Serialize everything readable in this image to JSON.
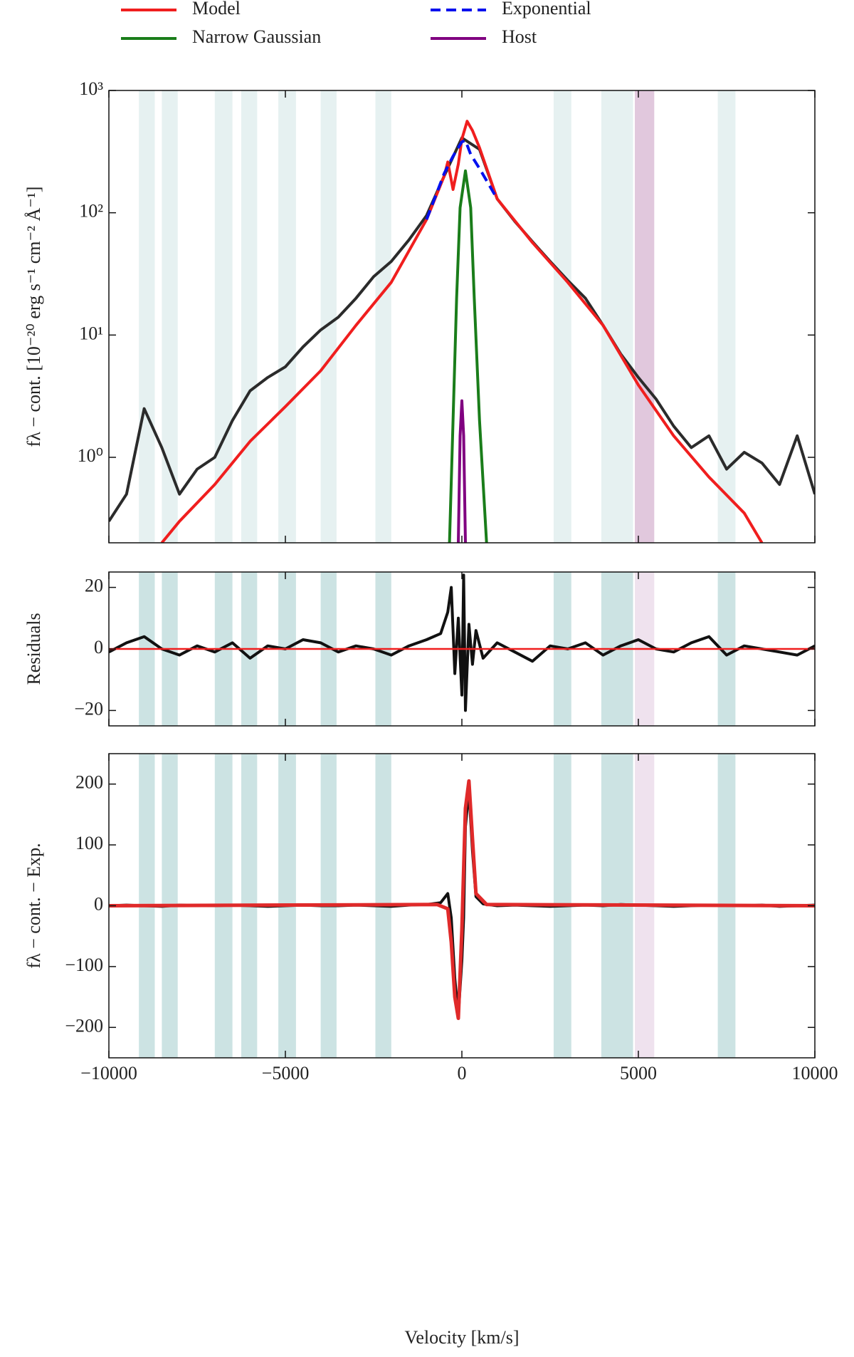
{
  "chart_data": [
    {
      "type": "line",
      "log_y": true,
      "ylabel": "fλ − cont. [10⁻²⁰ erg s⁻¹ cm⁻² Å⁻¹]",
      "ylim": [
        0.2,
        1000
      ],
      "yticks": [
        {
          "value": 1,
          "label": "10⁰"
        },
        {
          "value": 10,
          "label": "10¹"
        },
        {
          "value": 100,
          "label": "10²"
        },
        {
          "value": 1000,
          "label": "10³"
        }
      ],
      "region_color": "#8fc1c1",
      "host_color": "#a8609f",
      "masked_regions": [
        [
          -9150,
          -8700
        ],
        [
          -8500,
          -8050
        ],
        [
          -7000,
          -6500
        ],
        [
          -6250,
          -5800
        ],
        [
          -5200,
          -4700
        ],
        [
          -4000,
          -3550
        ],
        [
          -2450,
          -2000
        ],
        [
          2600,
          3100
        ],
        [
          3950,
          4850
        ],
        [
          7250,
          7750
        ]
      ],
      "host_region": [
        4900,
        5450
      ],
      "observed": {
        "color": "#2b2b2b",
        "x": [
          -10000,
          -9500,
          -9000,
          -8500,
          -8000,
          -7500,
          -7000,
          -6500,
          -6000,
          -5500,
          -5000,
          -4500,
          -4000,
          -3500,
          -3000,
          -2500,
          -2000,
          -1500,
          -1000,
          -500,
          0,
          500,
          1000,
          1500,
          2000,
          2500,
          3000,
          3500,
          4000,
          4500,
          5000,
          5500,
          6000,
          6500,
          7000,
          7500,
          8000,
          8500,
          9000,
          9500,
          10000
        ],
        "values": [
          0.3,
          0.5,
          2.5,
          1.2,
          0.5,
          0.8,
          1.0,
          2.0,
          3.5,
          4.5,
          5.5,
          8,
          11,
          14,
          20,
          30,
          40,
          60,
          95,
          200,
          410,
          330,
          130,
          85,
          58,
          40,
          28,
          20,
          12,
          7,
          4.5,
          3,
          1.8,
          1.2,
          1.5,
          0.8,
          1.1,
          0.9,
          0.6,
          1.5,
          0.5
        ]
      },
      "series": [
        {
          "name": "Model",
          "color": "#f01e1e",
          "x": [
            -8500,
            -8000,
            -7000,
            -6000,
            -5000,
            -4000,
            -3000,
            -2000,
            -1000,
            -500,
            -400,
            -250,
            -100,
            0,
            150,
            300,
            500,
            1000,
            2000,
            3000,
            4000,
            5000,
            6000,
            7000,
            8000,
            8500
          ],
          "values": [
            0.2,
            0.3,
            0.6,
            1.35,
            2.6,
            5.1,
            12,
            27,
            88,
            200,
            260,
            155,
            250,
            400,
            560,
            470,
            340,
            130,
            57,
            27,
            12,
            3.9,
            1.5,
            0.69,
            0.35,
            0.2
          ]
        },
        {
          "name": "Narrow Gaussian",
          "color": "#1a7d1a",
          "x": [
            -350,
            -250,
            -150,
            -50,
            100,
            250,
            350,
            500,
            700
          ],
          "values": [
            0.2,
            2,
            20,
            110,
            220,
            110,
            20,
            2,
            0.2
          ]
        },
        {
          "name": "Exponential",
          "color": "#0010ee",
          "dash": true,
          "x": [
            -1000,
            -500,
            -250,
            0,
            100,
            250,
            500,
            1000
          ],
          "values": [
            88,
            210,
            290,
            380,
            390,
            300,
            230,
            130
          ]
        },
        {
          "name": "Host",
          "color": "#800080",
          "x": [
            -100,
            -50,
            0,
            50,
            100
          ],
          "values": [
            0.2,
            1.5,
            2.9,
            1.5,
            0.2
          ]
        }
      ]
    },
    {
      "type": "line",
      "ylabel": "Residuals",
      "ylim": [
        -25,
        25
      ],
      "yticks": [
        {
          "value": -20,
          "label": "−20"
        },
        0,
        20
      ],
      "observed": {
        "color": "#111111",
        "x": [
          -10000,
          -9500,
          -9000,
          -8500,
          -8000,
          -7500,
          -7000,
          -6500,
          -6000,
          -5500,
          -5000,
          -4500,
          -4000,
          -3500,
          -3000,
          -2500,
          -2000,
          -1500,
          -1000,
          -600,
          -400,
          -300,
          -200,
          -100,
          0,
          50,
          100,
          200,
          300,
          400,
          600,
          1000,
          1500,
          2000,
          2500,
          3000,
          3500,
          4000,
          4500,
          5000,
          5500,
          6000,
          6500,
          7000,
          7500,
          8000,
          8500,
          9000,
          9500,
          10000
        ],
        "values": [
          -1,
          2,
          4,
          0,
          -2,
          1,
          -1,
          2,
          -3,
          1,
          0,
          3,
          2,
          -1,
          1,
          0,
          -2,
          1,
          3,
          5,
          12,
          20,
          -8,
          10,
          -15,
          24,
          -20,
          8,
          -5,
          6,
          -3,
          2,
          -1,
          -4,
          1,
          0,
          2,
          -2,
          1,
          3,
          0,
          -1,
          2,
          4,
          -2,
          1,
          0,
          -1,
          -2,
          1
        ]
      },
      "fit": {
        "color": "#f01e1e",
        "x": [
          -10000,
          10000
        ],
        "values": [
          0,
          0
        ]
      }
    },
    {
      "type": "line",
      "ylabel": "fλ − cont. − Exp.",
      "ylim": [
        -250,
        250
      ],
      "yticks": [
        {
          "value": -200,
          "label": "−200"
        },
        {
          "value": -100,
          "label": "−100"
        },
        0,
        100,
        200
      ],
      "xlabel": "Velocity [km/s]",
      "xlim": [
        -10000,
        10000
      ],
      "xticks": [
        {
          "value": -10000,
          "label": "−10000"
        },
        {
          "value": -5000,
          "label": "−5000"
        },
        0,
        5000,
        10000
      ],
      "observed": {
        "color": "#111111",
        "x": [
          -10000,
          -9500,
          -9000,
          -8500,
          -8000,
          -7500,
          -7000,
          -6500,
          -6000,
          -5500,
          -5000,
          -4500,
          -4000,
          -3500,
          -3000,
          -2500,
          -2000,
          -1500,
          -1000,
          -600,
          -400,
          -300,
          -200,
          -100,
          0,
          50,
          100,
          200,
          300,
          400,
          600,
          1000,
          1500,
          2000,
          2500,
          3000,
          3500,
          4000,
          4500,
          5000,
          5500,
          6000,
          6500,
          7000,
          7500,
          8000,
          8500,
          9000,
          9500,
          10000
        ],
        "values": [
          0,
          1,
          0,
          -1,
          1,
          0,
          0,
          1,
          0,
          -1,
          0,
          1,
          0,
          0,
          1,
          0,
          -1,
          1,
          2,
          5,
          20,
          -20,
          -120,
          -180,
          -90,
          -20,
          130,
          190,
          90,
          15,
          3,
          0,
          1,
          0,
          -1,
          0,
          1,
          0,
          2,
          1,
          0,
          -1,
          0,
          1,
          0,
          0,
          1,
          -1,
          0,
          1
        ]
      },
      "fit": {
        "color": "#e02a2a",
        "x": [
          -10000,
          -700,
          -400,
          -300,
          -200,
          -100,
          0,
          100,
          200,
          300,
          400,
          700,
          10000
        ],
        "values": [
          0,
          2,
          -5,
          -60,
          -150,
          -185,
          -40,
          160,
          205,
          110,
          20,
          2,
          0
        ]
      }
    }
  ]
}
